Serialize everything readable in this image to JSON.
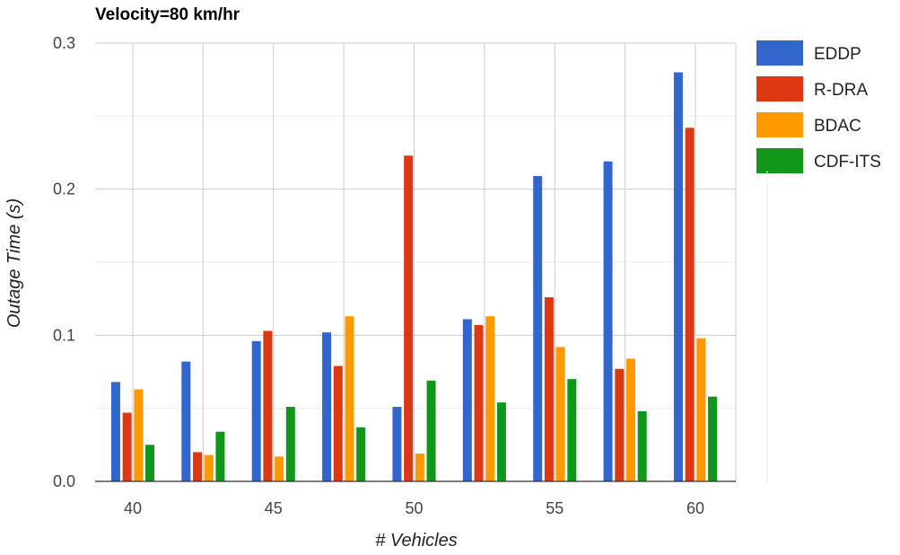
{
  "chart_data": {
    "type": "bar",
    "title": "Velocity=80 km/hr",
    "xlabel": "# Vehicles",
    "ylabel": "Outage Time (s)",
    "ylim": [
      0,
      0.3
    ],
    "yticks": [
      "0.0",
      "0.1",
      "0.2",
      "0.3"
    ],
    "xticks": [
      "40",
      "45",
      "50",
      "55",
      "60"
    ],
    "categories": [
      "40",
      "42.5",
      "45",
      "47.5",
      "50",
      "52.5",
      "55",
      "57.5",
      "60"
    ],
    "grid": true,
    "legend_position": "right",
    "series": [
      {
        "name": "EDDP",
        "color": "#3366cc",
        "values": [
          0.068,
          0.082,
          0.096,
          0.102,
          0.051,
          0.111,
          0.209,
          0.219,
          0.28
        ]
      },
      {
        "name": "R-DRA",
        "color": "#dc3912",
        "values": [
          0.047,
          0.02,
          0.103,
          0.079,
          0.223,
          0.107,
          0.126,
          0.077,
          0.242
        ]
      },
      {
        "name": "BDAC",
        "color": "#ff9900",
        "values": [
          0.063,
          0.018,
          0.017,
          0.113,
          0.019,
          0.113,
          0.092,
          0.084,
          0.098
        ]
      },
      {
        "name": "CDF-ITS",
        "color": "#109618",
        "values": [
          0.025,
          0.034,
          0.051,
          0.037,
          0.069,
          0.054,
          0.07,
          0.048,
          0.058
        ]
      }
    ]
  }
}
